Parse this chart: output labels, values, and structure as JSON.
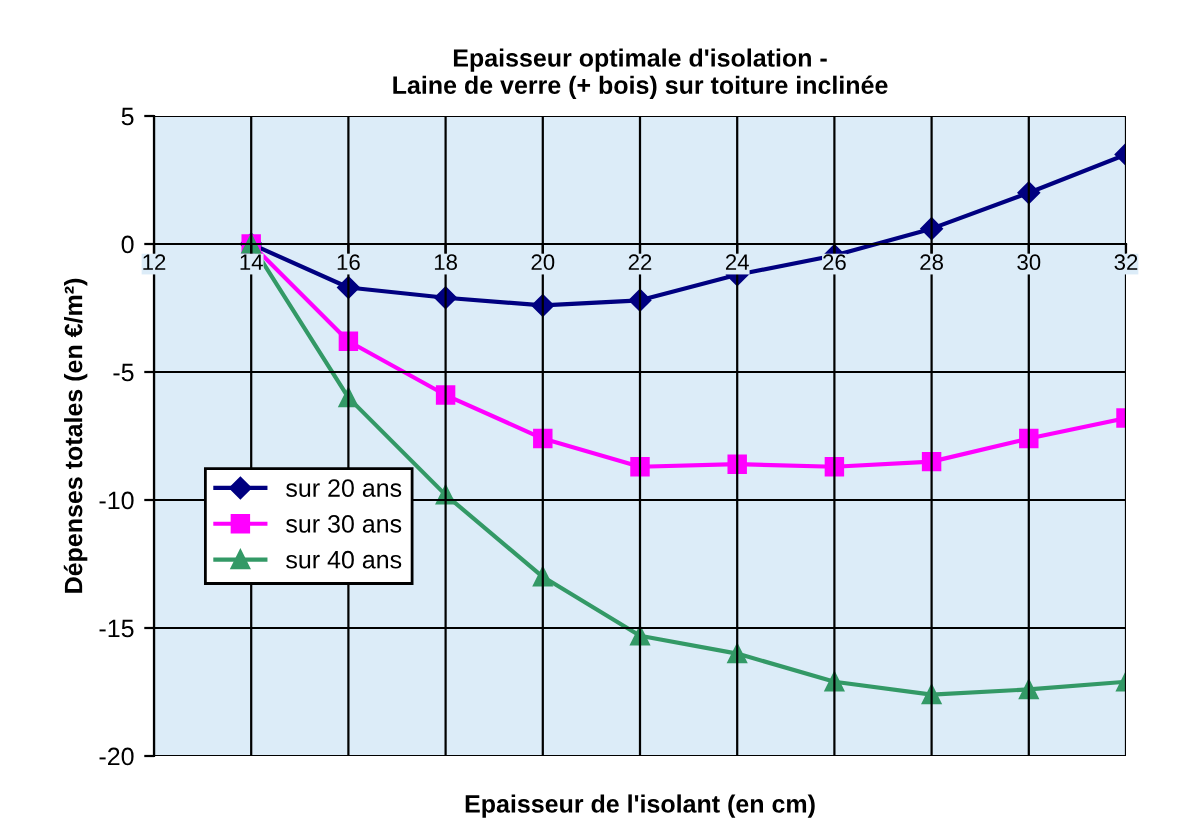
{
  "chart_data": {
    "type": "line",
    "title": "Epaisseur optimale d'isolation -\nLaine de verre (+ bois) sur toiture inclinée",
    "xlabel": "Epaisseur de l'isolant (en cm)",
    "ylabel": "Dépenses totales (en €/m²)",
    "x": [
      14,
      16,
      18,
      20,
      22,
      24,
      26,
      28,
      30,
      32
    ],
    "series": [
      {
        "name": "sur 20 ans",
        "color": "#000080",
        "marker": "diamond",
        "values": [
          0,
          -1.7,
          -2.1,
          -2.4,
          -2.2,
          -1.2,
          -0.45,
          0.6,
          2.0,
          3.5
        ]
      },
      {
        "name": "sur 30 ans",
        "color": "#ff00ff",
        "marker": "square",
        "values": [
          0,
          -3.8,
          -5.9,
          -7.6,
          -8.7,
          -8.6,
          -8.7,
          -8.5,
          -7.6,
          -6.8
        ]
      },
      {
        "name": "sur 40 ans",
        "color": "#339966",
        "marker": "triangle",
        "values": [
          0,
          -6.0,
          -9.8,
          -13.0,
          -15.3,
          -16.0,
          -17.1,
          -17.6,
          -17.4,
          -17.1
        ]
      }
    ],
    "xlim": [
      12,
      32
    ],
    "xticks": [
      12,
      14,
      16,
      18,
      20,
      22,
      24,
      26,
      28,
      30,
      32
    ],
    "ylim": [
      -20,
      5
    ],
    "yticks": [
      -20,
      -15,
      -10,
      -5,
      0,
      5
    ],
    "grid": true,
    "legend": "bottom left"
  }
}
